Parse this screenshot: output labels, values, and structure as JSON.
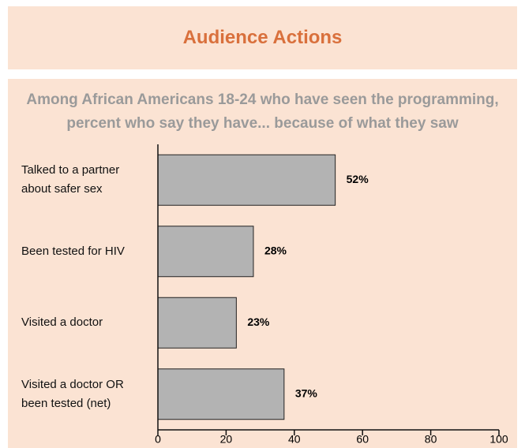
{
  "chart_data": {
    "type": "hbar",
    "title": "Audience Actions",
    "subtitle": "Among African Americans 18-24 who have seen the programming,\npercent who say they have... because of what they saw",
    "categories": [
      "Talked to a partner\nabout safer sex",
      "Been tested for HIV",
      "Visited a doctor",
      "Visited a doctor OR\nbeen tested (net)"
    ],
    "values": [
      52,
      28,
      23,
      37
    ],
    "value_labels": [
      "52%",
      "28%",
      "23%",
      "37%"
    ],
    "color": "#b3b3b3",
    "xlim": [
      0,
      100
    ],
    "xticks": [
      0,
      20,
      40,
      60,
      80,
      100
    ]
  }
}
